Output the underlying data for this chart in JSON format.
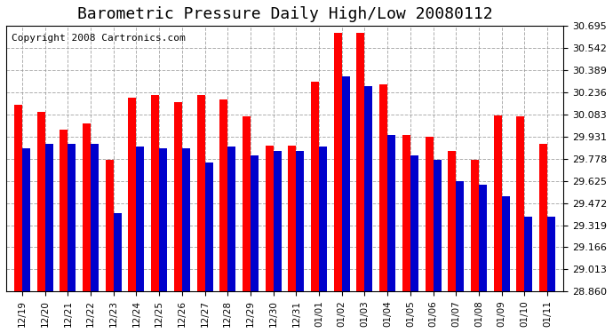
{
  "title": "Barometric Pressure Daily High/Low 20080112",
  "copyright": "Copyright 2008 Cartronics.com",
  "dates": [
    "12/19",
    "12/20",
    "12/21",
    "12/22",
    "12/23",
    "12/24",
    "12/25",
    "12/26",
    "12/27",
    "12/28",
    "12/29",
    "12/30",
    "12/31",
    "01/01",
    "01/02",
    "01/03",
    "01/04",
    "01/05",
    "01/06",
    "01/07",
    "01/08",
    "01/09",
    "01/10",
    "01/11"
  ],
  "highs": [
    30.15,
    30.1,
    29.98,
    30.02,
    29.77,
    30.2,
    30.22,
    30.17,
    30.22,
    30.19,
    30.07,
    29.87,
    29.87,
    30.31,
    30.65,
    30.65,
    30.29,
    29.94,
    29.93,
    29.83,
    29.77,
    30.08,
    30.07,
    29.88
  ],
  "lows": [
    29.85,
    29.88,
    29.88,
    29.88,
    29.4,
    29.86,
    29.85,
    29.85,
    29.75,
    29.86,
    29.8,
    29.83,
    29.83,
    29.86,
    30.35,
    30.28,
    29.94,
    29.8,
    29.77,
    29.62,
    29.6,
    29.52,
    29.38,
    29.38
  ],
  "ylim_min": 28.86,
  "ylim_max": 30.695,
  "yticks": [
    28.86,
    29.013,
    29.166,
    29.319,
    29.472,
    29.625,
    29.778,
    29.931,
    30.083,
    30.236,
    30.389,
    30.542,
    30.695
  ],
  "high_color": "#ff0000",
  "low_color": "#0000cc",
  "bg_color": "#ffffff",
  "grid_color": "#999999",
  "title_fontsize": 13,
  "copyright_fontsize": 8,
  "bar_width": 0.35
}
